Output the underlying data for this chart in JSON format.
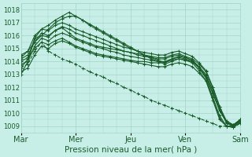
{
  "title": "Pression niveau de la mer( hPa )",
  "ylabel_values": [
    1009,
    1010,
    1011,
    1012,
    1013,
    1014,
    1015,
    1016,
    1017,
    1018
  ],
  "ylim": [
    1008.5,
    1018.5
  ],
  "xlim": [
    0,
    96
  ],
  "xtick_positions": [
    0,
    24,
    48,
    72,
    96
  ],
  "xtick_labels": [
    "Mar",
    "Mer",
    "Jeu",
    "Ven",
    "Sam"
  ],
  "bg_color": "#c8eee8",
  "grid_color": "#a0d4c8",
  "line_color": "#1a5c2a",
  "lines": [
    {
      "y": [
        1013.5,
        1014.2,
        1015.8,
        1016.0,
        1015.9,
        1016.4,
        1016.6,
        1016.2,
        1015.8,
        1015.6,
        1015.4,
        1015.2,
        1015.1,
        1015.0,
        1014.9,
        1014.8,
        1014.7,
        1014.6,
        1014.5,
        1014.4,
        1014.3,
        1014.3,
        1014.5,
        1014.6,
        1014.4,
        1014.2,
        1013.8,
        1013.2,
        1012.0,
        1010.5,
        1009.2,
        1009.0,
        1009.5
      ],
      "dashed": false
    },
    {
      "y": [
        1014.0,
        1014.3,
        1015.0,
        1015.5,
        1015.3,
        1015.6,
        1015.8,
        1015.5,
        1015.2,
        1015.0,
        1014.8,
        1014.6,
        1014.5,
        1014.4,
        1014.3,
        1014.2,
        1014.1,
        1014.0,
        1014.0,
        1013.9,
        1013.9,
        1013.9,
        1014.1,
        1014.2,
        1014.1,
        1014.0,
        1013.5,
        1012.8,
        1011.5,
        1010.2,
        1009.3,
        1009.1,
        1009.5
      ],
      "dashed": false
    },
    {
      "y": [
        1014.2,
        1014.5,
        1015.5,
        1016.2,
        1016.0,
        1016.4,
        1016.7,
        1016.5,
        1016.2,
        1016.0,
        1015.8,
        1015.6,
        1015.4,
        1015.2,
        1015.0,
        1014.8,
        1014.7,
        1014.5,
        1014.4,
        1014.3,
        1014.2,
        1014.2,
        1014.4,
        1014.5,
        1014.3,
        1014.1,
        1013.6,
        1013.0,
        1011.8,
        1010.3,
        1009.3,
        1009.0,
        1009.4
      ],
      "dashed": false
    },
    {
      "y": [
        1014.3,
        1014.8,
        1016.0,
        1016.5,
        1016.4,
        1016.8,
        1017.0,
        1016.8,
        1016.5,
        1016.3,
        1016.1,
        1015.9,
        1015.7,
        1015.5,
        1015.3,
        1015.1,
        1015.0,
        1014.8,
        1014.7,
        1014.6,
        1014.5,
        1014.5,
        1014.7,
        1014.8,
        1014.6,
        1014.4,
        1013.9,
        1013.3,
        1012.0,
        1010.5,
        1009.4,
        1009.1,
        1009.5
      ],
      "dashed": false
    },
    {
      "y": [
        1013.8,
        1014.0,
        1015.2,
        1015.8,
        1015.6,
        1016.0,
        1016.2,
        1016.0,
        1015.7,
        1015.5,
        1015.3,
        1015.1,
        1015.0,
        1014.8,
        1014.7,
        1014.5,
        1014.4,
        1014.3,
        1014.2,
        1014.1,
        1014.0,
        1014.0,
        1014.2,
        1014.3,
        1014.2,
        1014.0,
        1013.5,
        1012.9,
        1011.6,
        1010.2,
        1009.3,
        1009.0,
        1009.4
      ],
      "dashed": false
    },
    {
      "y": [
        1013.2,
        1013.5,
        1014.5,
        1015.2,
        1015.0,
        1015.4,
        1015.6,
        1015.4,
        1015.1,
        1014.9,
        1014.7,
        1014.5,
        1014.4,
        1014.3,
        1014.2,
        1014.1,
        1014.0,
        1013.9,
        1013.8,
        1013.7,
        1013.6,
        1013.6,
        1013.8,
        1013.9,
        1013.8,
        1013.6,
        1013.1,
        1012.5,
        1011.2,
        1009.8,
        1009.0,
        1009.0,
        1009.5
      ],
      "dashed": false
    },
    {
      "y": [
        1013.0,
        1014.0,
        1015.8,
        1016.5,
        1016.8,
        1017.2,
        1017.5,
        1017.8,
        1017.5,
        1017.2,
        1016.8,
        1016.5,
        1016.2,
        1015.9,
        1015.6,
        1015.3,
        1015.0,
        1014.8,
        1014.5,
        1014.2,
        1014.0,
        1013.8,
        1014.0,
        1014.2,
        1014.1,
        1013.9,
        1013.3,
        1012.5,
        1011.0,
        1009.5,
        1009.0,
        1008.9,
        1009.3
      ],
      "dashed": false
    },
    {
      "y": [
        1013.5,
        1013.8,
        1014.8,
        1015.5,
        1014.8,
        1014.5,
        1014.2,
        1014.0,
        1013.8,
        1013.5,
        1013.2,
        1013.0,
        1012.8,
        1012.5,
        1012.3,
        1012.0,
        1011.8,
        1011.5,
        1011.3,
        1011.0,
        1010.8,
        1010.6,
        1010.4,
        1010.2,
        1010.0,
        1009.8,
        1009.6,
        1009.4,
        1009.2,
        1009.0,
        1009.0,
        1008.9,
        1009.2
      ],
      "dashed": true
    },
    {
      "y": [
        1014.5,
        1014.8,
        1015.5,
        1016.0,
        1016.5,
        1017.0,
        1017.3,
        1017.5,
        1017.5,
        1017.2,
        1016.9,
        1016.6,
        1016.3,
        1016.0,
        1015.7,
        1015.4,
        1015.1,
        1014.8,
        1014.5,
        1014.3,
        1014.1,
        1013.9,
        1014.2,
        1014.4,
        1014.3,
        1014.1,
        1013.5,
        1012.7,
        1011.2,
        1009.6,
        1009.0,
        1008.9,
        1009.3
      ],
      "dashed": false
    }
  ],
  "n_points": 33,
  "marker": "+",
  "markersize": 2.5,
  "linewidth": 0.8
}
